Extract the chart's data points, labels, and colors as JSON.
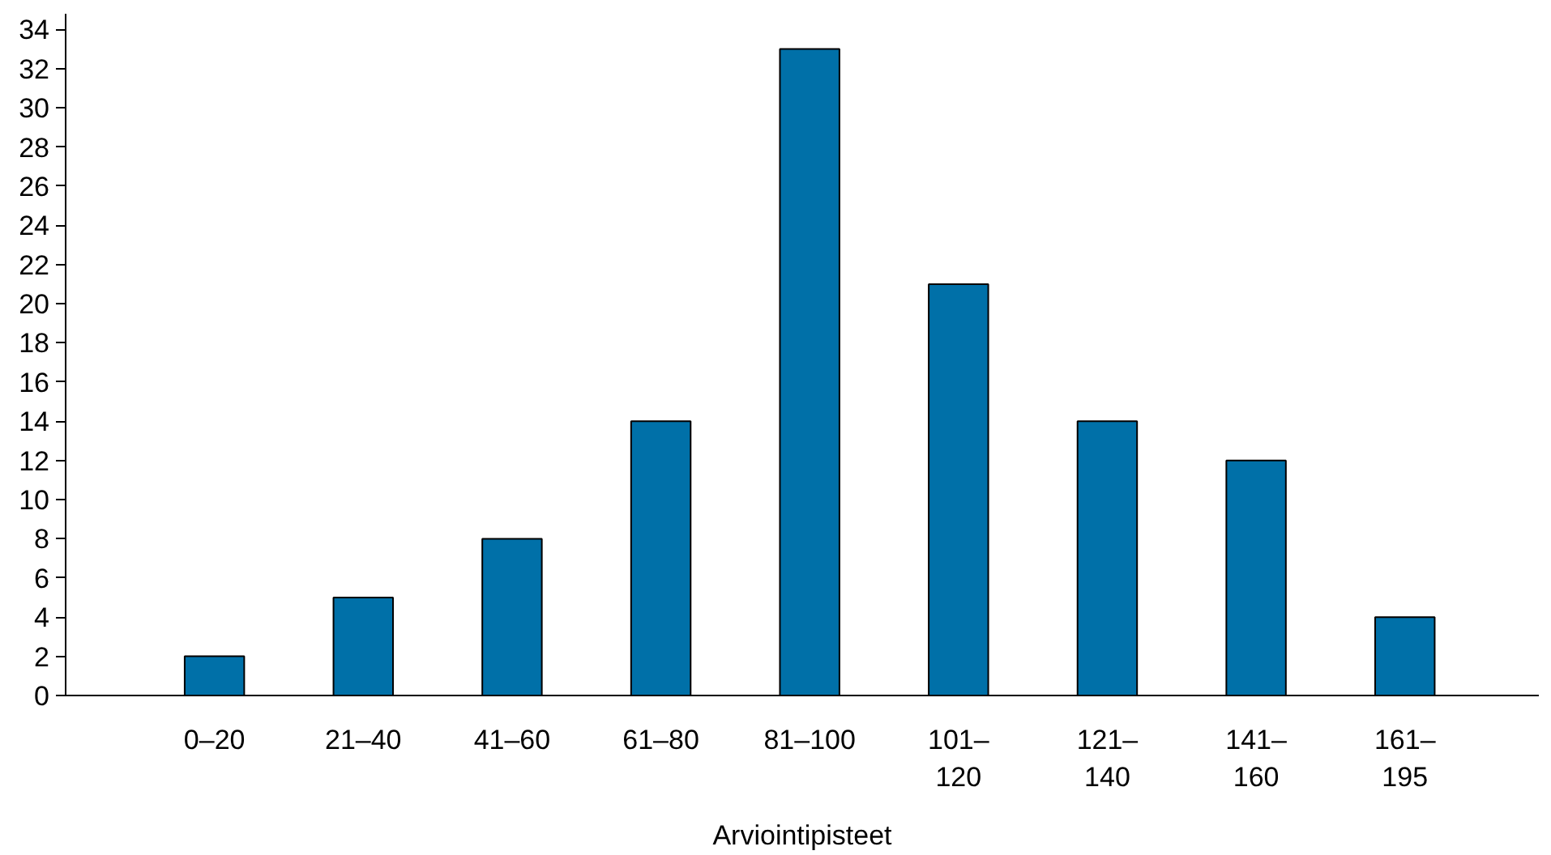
{
  "chart_data": {
    "type": "bar",
    "xlabel": "Arviointipisteet",
    "categories": [
      "0–20",
      "21–40",
      "41–60",
      "61–80",
      "81–100",
      "101–120",
      "121–140",
      "141–160",
      "161–195"
    ],
    "values": [
      2,
      5,
      8,
      14,
      33,
      21,
      14,
      12,
      4
    ],
    "color": "#0070a8",
    "ylim": [
      0,
      34.8
    ],
    "yticks": [
      0,
      2,
      4,
      6,
      8,
      10,
      12,
      14,
      16,
      18,
      20,
      22,
      24,
      26,
      28,
      30,
      32,
      34
    ],
    "grid": false
  }
}
